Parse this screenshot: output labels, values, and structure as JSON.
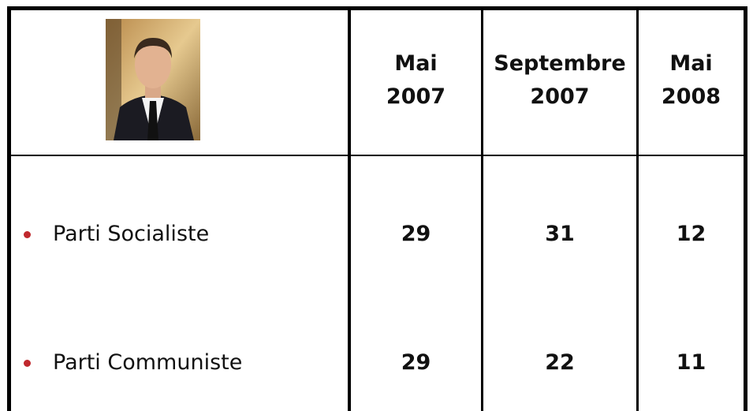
{
  "table": {
    "header": [
      "Mai\n2007",
      "Septembre\n2007",
      "Mai\n2008"
    ],
    "rows": [
      [
        "Parti Socialiste",
        29,
        31,
        12
      ],
      [
        "Parti Communiste",
        29,
        22,
        11
      ]
    ]
  }
}
